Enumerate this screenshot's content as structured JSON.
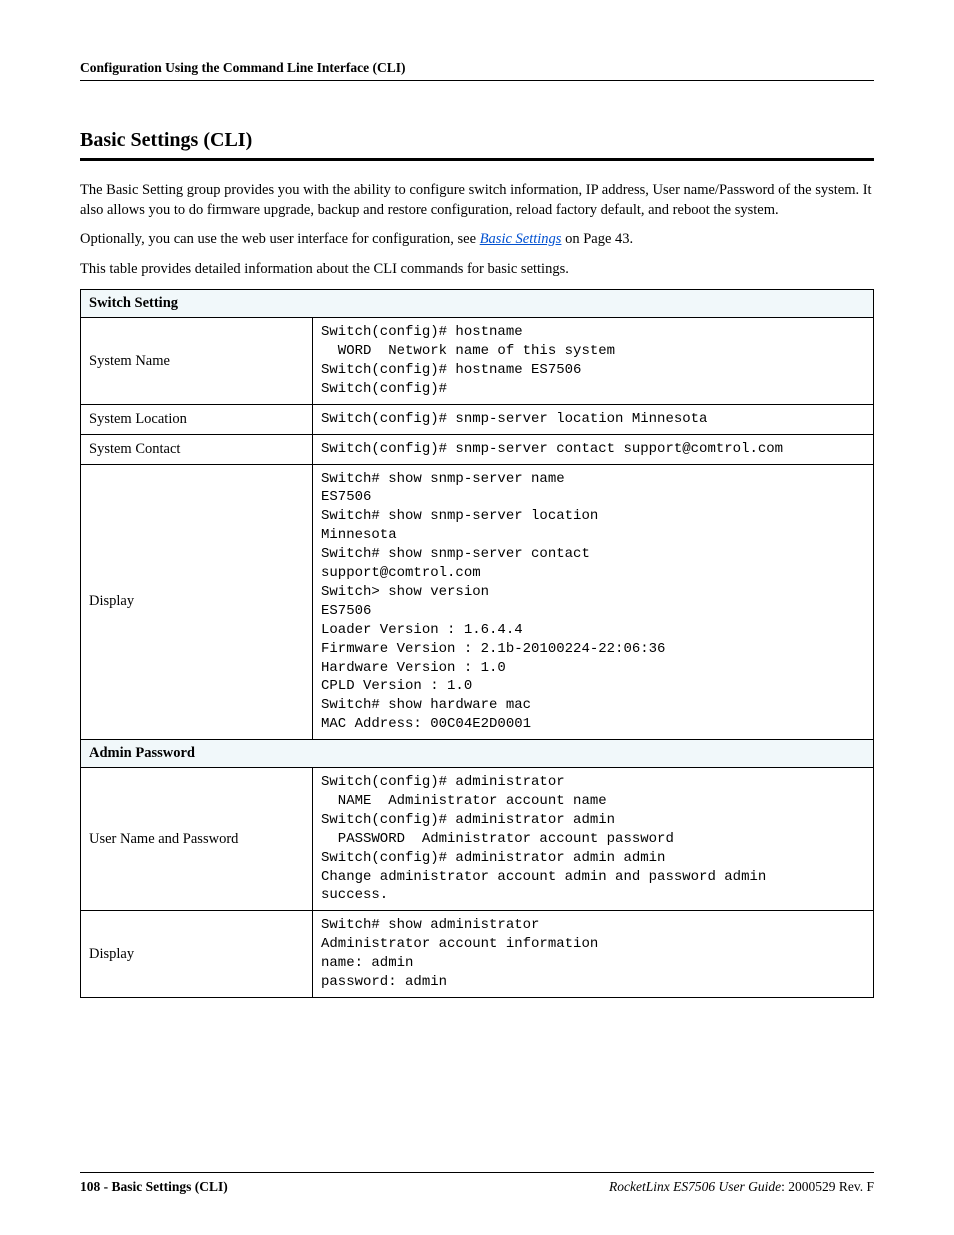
{
  "header": {
    "breadcrumb": "Configuration Using the Command Line Interface (CLI)"
  },
  "title": "Basic Settings (CLI)",
  "paragraphs": {
    "p1": "The Basic Setting group provides you with the ability to configure switch information, IP address, User name/Password of the system. It also allows you to do firmware upgrade, backup and restore configuration, reload factory default, and reboot the system.",
    "p2_pre": "Optionally, you can use the web user interface for configuration, see ",
    "p2_link": "Basic Settings",
    "p2_post": " on Page 43.",
    "p3": "This table provides detailed information about the CLI commands for basic settings."
  },
  "table": {
    "section1_header": "Switch Setting",
    "rows1": [
      {
        "label": "System Name",
        "code": "Switch(config)# hostname\n  WORD  Network name of this system\nSwitch(config)# hostname ES7506\nSwitch(config)#"
      },
      {
        "label": "System Location",
        "code": "Switch(config)# snmp-server location Minnesota"
      },
      {
        "label": "System Contact",
        "code": "Switch(config)# snmp-server contact support@comtrol.com"
      },
      {
        "label": "Display",
        "code": "Switch# show snmp-server name\nES7506\nSwitch# show snmp-server location\nMinnesota\nSwitch# show snmp-server contact\nsupport@comtrol.com\nSwitch> show version\nES7506\nLoader Version : 1.6.4.4\nFirmware Version : 2.1b-20100224-22:06:36\nHardware Version : 1.0\nCPLD Version : 1.0\nSwitch# show hardware mac\nMAC Address: 00C04E2D0001"
      }
    ],
    "section2_header": "Admin Password",
    "rows2": [
      {
        "label": "User Name and Password",
        "code": "Switch(config)# administrator\n  NAME  Administrator account name\nSwitch(config)# administrator admin\n  PASSWORD  Administrator account password\nSwitch(config)# administrator admin admin\nChange administrator account admin and password admin\nsuccess."
      },
      {
        "label": "Display",
        "code": "Switch# show administrator\nAdministrator account information\nname: admin\npassword: admin"
      }
    ]
  },
  "footer": {
    "left": "108 - Basic Settings (CLI)",
    "right_italic": "RocketLinx ES7506  User Guide",
    "right_rest": ": 2000529 Rev. F"
  }
}
